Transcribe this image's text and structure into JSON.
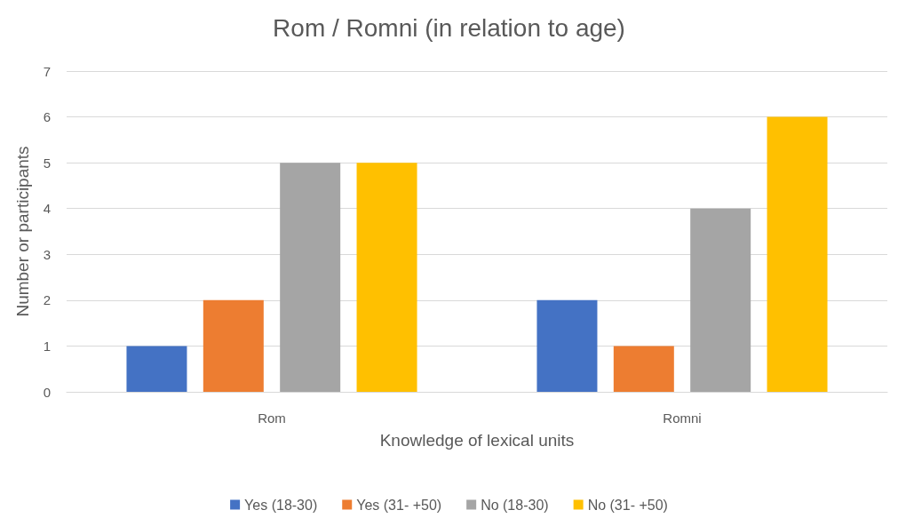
{
  "chart_data": {
    "type": "bar",
    "title": "Rom / Romni (in relation to age)",
    "xlabel": "Knowledge of lexical units",
    "ylabel": "Number or participants",
    "categories": [
      "Rom",
      "Romni"
    ],
    "series": [
      {
        "name": "Yes (18-30)",
        "color": "#4472c4",
        "values": [
          1,
          2
        ]
      },
      {
        "name": "Yes (31- +50)",
        "color": "#ed7d31",
        "values": [
          2,
          1
        ]
      },
      {
        "name": "No (18-30)",
        "color": "#a5a5a5",
        "values": [
          5,
          4
        ]
      },
      {
        "name": "No (31- +50)",
        "color": "#ffc000",
        "values": [
          5,
          6
        ]
      }
    ],
    "ylim": [
      0,
      7
    ],
    "yticks": [
      0,
      1,
      2,
      3,
      4,
      5,
      6,
      7
    ],
    "grid": "y",
    "legend": "bottom"
  }
}
